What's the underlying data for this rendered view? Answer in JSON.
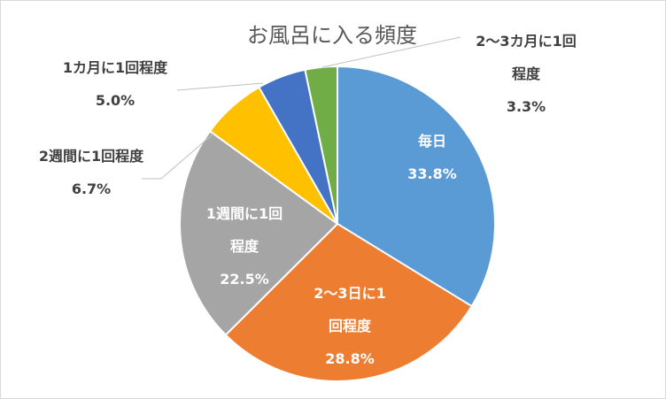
{
  "chart_data": {
    "type": "pie",
    "title": "お風呂に入る頻度",
    "slices": [
      {
        "label": "毎日",
        "value": 33.8,
        "value_label": "33.8%",
        "color": "#5b9bd5"
      },
      {
        "label": "2～3日に1回程度",
        "value": 28.8,
        "value_label": "28.8%",
        "color": "#ed7d31"
      },
      {
        "label": "1週間に1回程度",
        "value": 22.5,
        "value_label": "22.5%",
        "color": "#a5a5a5"
      },
      {
        "label": "2週間に1回程度",
        "value": 6.7,
        "value_label": "6.7%",
        "color": "#ffc000"
      },
      {
        "label": "1カ月に1回程度",
        "value": 5.0,
        "value_label": "5.0%",
        "color": "#4472c4"
      },
      {
        "label": "2～3カ月に1回程度",
        "value": 3.3,
        "value_label": "3.3%",
        "color": "#70ad47"
      }
    ],
    "legend": "none",
    "data_labels": "category and percentage"
  }
}
